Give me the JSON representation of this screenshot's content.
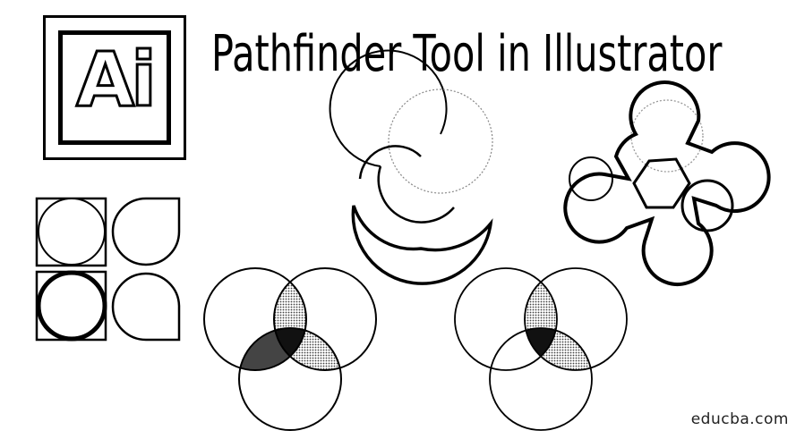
{
  "logo": {
    "text": "Ai"
  },
  "title": "Pathfinder Tool in Illustrator",
  "watermark": "educba.com"
}
